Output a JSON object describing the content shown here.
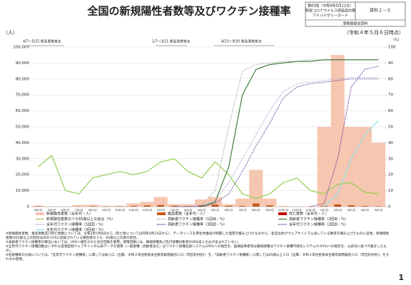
{
  "header": {
    "title": "全国の新規陽性者数等及びワクチン接種率",
    "meeting": [
      "第83回（令和4年5月11日）",
      "新型コロナウイルス感染症対策",
      "アドバイザリーボード"
    ],
    "doc_id": "資料２－５",
    "source": "事務局提出資料",
    "as_of": "（令和４年５月６日時点）"
  },
  "chart_data": {
    "type": "combo",
    "y_label": "（人）",
    "y2_label": "（%）",
    "annotations": [
      "4/7～5/25 緊急事態宣言",
      "1/7～3/21 緊急事態宣言",
      "4/23～9/30 緊急事態宣言"
    ],
    "categories": [
      "4月1日",
      "5月1日",
      "6月1日",
      "7月1日",
      "8月1日",
      "9月1日",
      "10月1日",
      "11月1日",
      "12月1日",
      "1月1日",
      "2月1日",
      "3月1日",
      "4月1日",
      "5月1日",
      "6月1日",
      "7月1日",
      "8月1日",
      "9月1日",
      "10月1日",
      "11月1日",
      "12月1日",
      "1月1日",
      "2月1日",
      "3月1日",
      "4月1日",
      "5月1日"
    ],
    "ylim": [
      0,
      100000
    ],
    "yticks": [
      0,
      {
        "value": 10000,
        "label": "10,000"
      },
      {
        "value": 20000,
        "label": "20,000"
      },
      {
        "value": 30000,
        "label": "30,000"
      },
      {
        "value": 40000,
        "label": "40,000"
      },
      {
        "value": 50000,
        "label": "50,000"
      },
      {
        "value": 60000,
        "label": "60,000"
      },
      {
        "value": 70000,
        "label": "70,000"
      },
      {
        "value": 80000,
        "label": "80,000"
      },
      {
        "value": 90000,
        "label": "90,000"
      },
      {
        "value": 100000,
        "label": "100,000"
      }
    ],
    "y2lim": [
      0,
      100
    ],
    "y2ticks": [
      0,
      10,
      20,
      30,
      40,
      50,
      60,
      70,
      80,
      90,
      100
    ],
    "grid": true,
    "series": [
      {
        "name": "新規陽性者数（全年代・人）",
        "type": "bar",
        "color": "#f7c6b0",
        "values": [
          500,
          150,
          80,
          1000,
          1200,
          500,
          600,
          2000,
          3000,
          6000,
          1500,
          1500,
          4500,
          6000,
          1500,
          5000,
          23000,
          5000,
          300,
          100,
          200,
          50000,
          95000,
          50000,
          50000,
          40000
        ]
      },
      {
        "name": "重症者数（全年代・人）",
        "type": "bar",
        "color": "#c55a11",
        "values": [
          300,
          50,
          30,
          100,
          250,
          150,
          150,
          400,
          700,
          1000,
          500,
          350,
          900,
          1200,
          500,
          400,
          2000,
          800,
          100,
          50,
          50,
          400,
          1400,
          800,
          300,
          200
        ]
      },
      {
        "name": "死亡者数（全年代・人）",
        "type": "bar",
        "color": "#c00000",
        "values": [
          20,
          10,
          5,
          5,
          15,
          10,
          10,
          30,
          50,
          90,
          70,
          30,
          50,
          100,
          40,
          15,
          50,
          40,
          5,
          2,
          2,
          50,
          230,
          100,
          50,
          30
        ]
      },
      {
        "name": "新規陽性者数のうち65歳以上の割合（%）",
        "type": "line",
        "axis": "y2",
        "color": "#92d050",
        "dash": false,
        "values": [
          25,
          32,
          10,
          8,
          18,
          20,
          22,
          20,
          22,
          28,
          30,
          22,
          18,
          28,
          20,
          8,
          5,
          8,
          15,
          18,
          10,
          8,
          14,
          15,
          9,
          8
        ]
      },
      {
        "name": "高齢者ワクチン接種率（1回目・%）",
        "type": "line",
        "axis": "y2",
        "color": "#a6a6a6",
        "dash": true,
        "values": [
          null,
          null,
          null,
          null,
          null,
          null,
          null,
          null,
          null,
          null,
          null,
          null,
          1,
          10,
          50,
          85,
          89,
          90,
          91,
          91,
          92,
          92,
          92,
          92,
          92,
          92
        ]
      },
      {
        "name": "高齢者ワクチン接種率（2回目・%）",
        "type": "line",
        "axis": "y2",
        "color": "#3b7d3b",
        "dash": false,
        "values": [
          null,
          null,
          null,
          null,
          null,
          null,
          null,
          null,
          null,
          null,
          null,
          null,
          0,
          3,
          25,
          70,
          86,
          89,
          90,
          91,
          91,
          92,
          92,
          92,
          92,
          92
        ]
      },
      {
        "name": "全年代ワクチン接種率（1回目・%）",
        "type": "line",
        "axis": "y2",
        "color": "#b4a7d6",
        "dash": true,
        "values": [
          null,
          null,
          null,
          null,
          null,
          null,
          null,
          null,
          null,
          null,
          0,
          0,
          1,
          4,
          15,
          30,
          45,
          60,
          72,
          77,
          78,
          79,
          80,
          81,
          81,
          81
        ]
      },
      {
        "name": "高齢者ワクチン接種率（3回目・%）",
        "type": "line",
        "axis": "y2",
        "color": "#7030a0",
        "dash": true,
        "values": [
          null,
          null,
          null,
          null,
          null,
          null,
          null,
          null,
          null,
          null,
          null,
          null,
          null,
          null,
          null,
          null,
          null,
          null,
          null,
          null,
          0,
          2,
          30,
          75,
          86,
          88
        ]
      },
      {
        "name": "全年代ワクチン接種率（2回目・%）",
        "type": "line",
        "axis": "y2",
        "color": "#5b4b9a",
        "dash": true,
        "values": [
          null,
          null,
          null,
          null,
          null,
          null,
          null,
          null,
          null,
          null,
          0,
          0,
          0,
          2,
          8,
          22,
          38,
          52,
          68,
          75,
          77,
          78,
          79,
          80,
          80,
          80
        ]
      },
      {
        "name": "全年代ワクチン接種率（3回目・%）",
        "type": "line",
        "axis": "y2",
        "color": "#8ee0e8",
        "dash": false,
        "values": [
          null,
          null,
          null,
          null,
          null,
          null,
          null,
          null,
          null,
          null,
          null,
          null,
          null,
          null,
          null,
          null,
          null,
          null,
          null,
          null,
          null,
          0,
          8,
          30,
          45,
          54
        ]
      }
    ]
  },
  "notes": [
    "※新規陽性者数、重症者数及び死亡者数については、令和2年5月8日から（死亡者については同年4月21日から）、データソースを厚生労働省が把握した個票を積み上げたものから、各自治体がウェブサイトで公表している数等を積み上げたものに変更。新規陽性者数の65歳以上の割合はHER-SYSに登録されている陽性者のうち、65歳以上の者の割合。",
    "※高齢者ワクチン接種率の算出においては、VRSへ報告された合計回数を使用。使用回数には、職域接種及び先行接種対象者のVRS未入力分が含まれていない。",
    "※全年代ワクチン接種回数はいずれも首相官邸ウェブサイトの公表データを使用（一般接種（高齢者含む）はワクチン接種記録システム(VRS)への報告を、医療従事者等は職域接種はワクチン接種円滑化システム(V-SYS)への報告を、公表日に基づき集計したもの）。",
    "※各接種率の分母については、「全年代ワクチン接種率」に関しては総人口（出典：令和３年住民基本台帳年齢階級別人口（市区町村別））を、「高齢者ワクチン接種率」に関しては65歳以上人口（出典：令和３年住民基本台帳年齢階級別人口（市区町村別））をそれぞれ使用。"
  ],
  "page_number": "1"
}
